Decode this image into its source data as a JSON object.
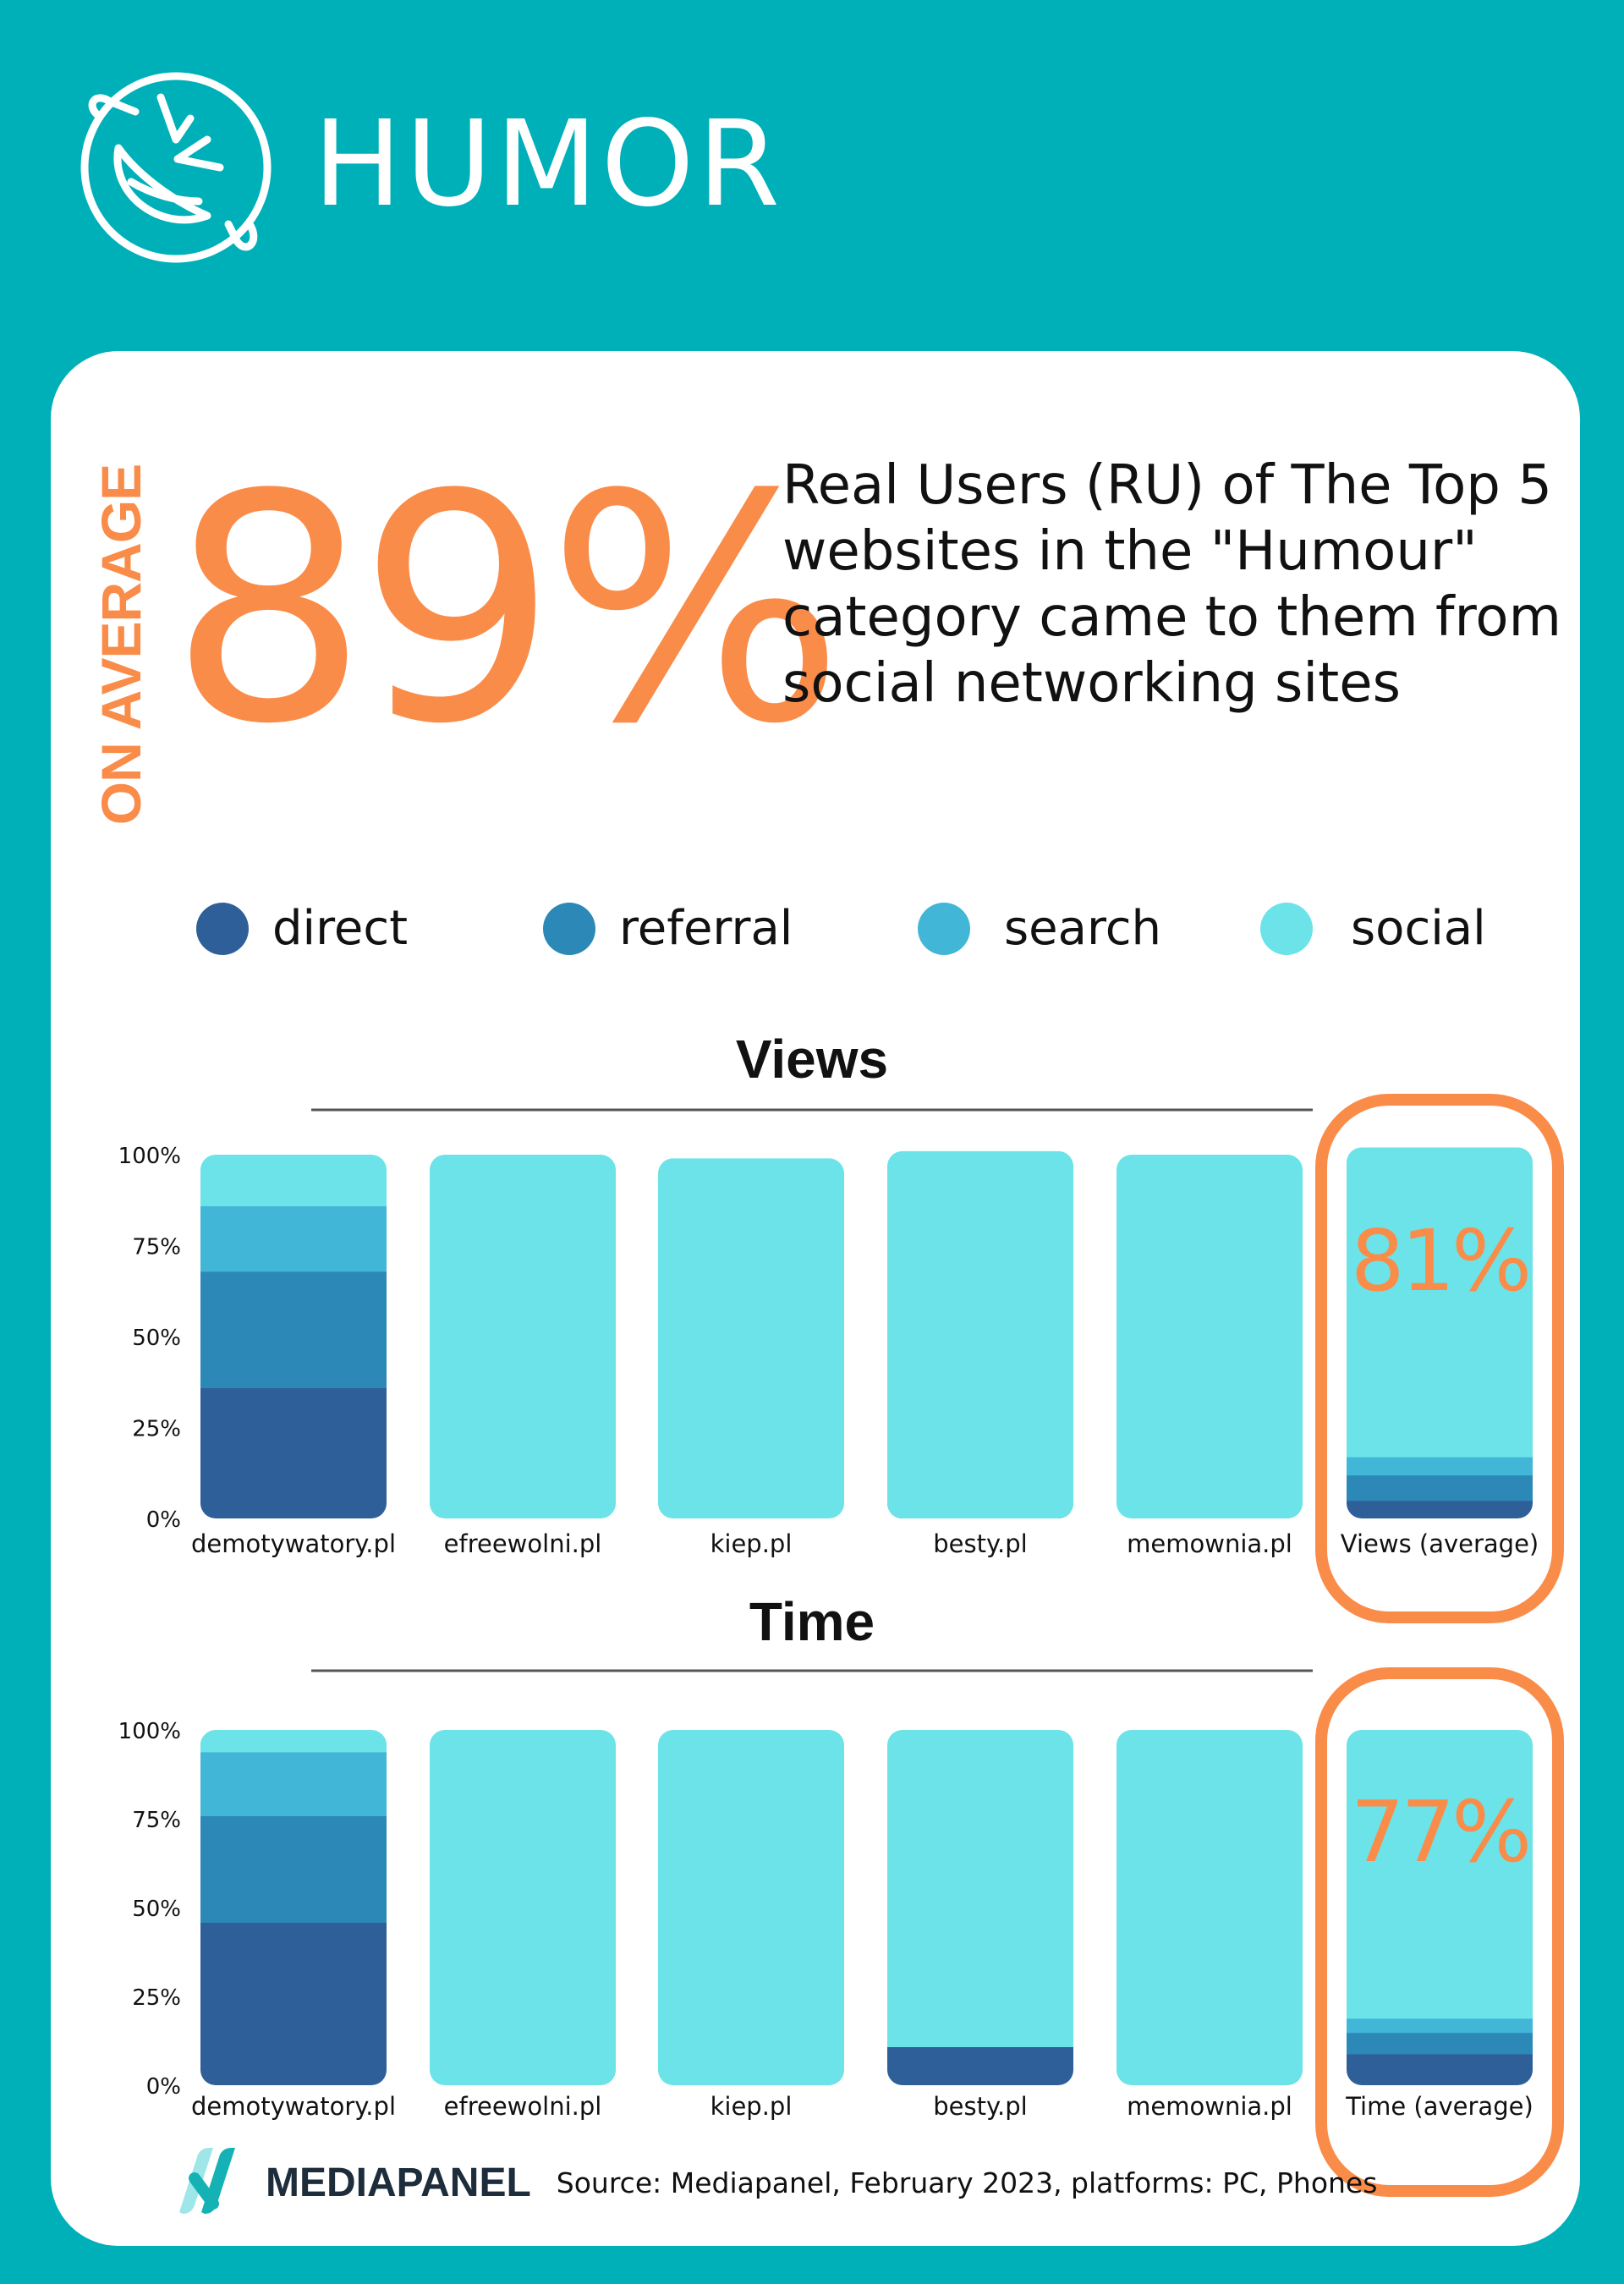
{
  "header": {
    "title": "HUMOR",
    "icon": "laughing-face-icon"
  },
  "summary": {
    "side_label": "ON AVERAGE",
    "big_value": "89%",
    "text": "Real Users (RU) of The Top 5 websites in the \"Humour\" category came to them from social networking sites"
  },
  "legend": [
    {
      "label": "direct",
      "color": "#2f5f98"
    },
    {
      "label": "referral",
      "color": "#2c88b7"
    },
    {
      "label": "search",
      "color": "#41b6d6"
    },
    {
      "label": "social",
      "color": "#6be3e8"
    }
  ],
  "colors": {
    "accent": "#fa8c4a",
    "background": "#00b0b9"
  },
  "chart_data": [
    {
      "type": "bar",
      "stacked": true,
      "title": "Views",
      "y_ticks": [
        "0%",
        "25%",
        "50%",
        "75%",
        "100%"
      ],
      "ylim": [
        0,
        100
      ],
      "categories": [
        "demotywatory.pl",
        "efreewolni.pl",
        "kiep.pl",
        "besty.pl",
        "memownia.pl",
        "Views (average)"
      ],
      "series": [
        {
          "name": "direct",
          "values": [
            40,
            0,
            0,
            2,
            0,
            9
          ]
        },
        {
          "name": "referral",
          "values": [
            32,
            0,
            0,
            1,
            0,
            7
          ]
        },
        {
          "name": "search",
          "values": [
            18,
            0,
            0,
            1,
            0,
            5
          ]
        },
        {
          "name": "social",
          "values": [
            10,
            100,
            99,
            97,
            100,
            81
          ]
        }
      ],
      "highlight": {
        "category": "Views (average)",
        "label": "81%"
      }
    },
    {
      "type": "bar",
      "stacked": true,
      "title": "Time",
      "y_ticks": [
        "0%",
        "25%",
        "50%",
        "75%",
        "100%"
      ],
      "ylim": [
        0,
        100
      ],
      "categories": [
        "demotywatory.pl",
        "efreewolni.pl",
        "kiep.pl",
        "besty.pl",
        "memownia.pl",
        "Time (average)"
      ],
      "series": [
        {
          "name": "direct",
          "values": [
            50,
            0,
            0,
            15,
            0,
            13
          ]
        },
        {
          "name": "referral",
          "values": [
            30,
            0,
            0,
            0,
            0,
            6
          ]
        },
        {
          "name": "search",
          "values": [
            18,
            0,
            0,
            0,
            0,
            4
          ]
        },
        {
          "name": "social",
          "values": [
            2,
            100,
            100,
            85,
            100,
            77
          ]
        }
      ],
      "highlight": {
        "category": "Time (average)",
        "label": "77%"
      }
    }
  ],
  "footer": {
    "brand": "MEDIAPANEL",
    "source": "Source: Mediapanel, February 2023, platforms: PC, Phones"
  }
}
